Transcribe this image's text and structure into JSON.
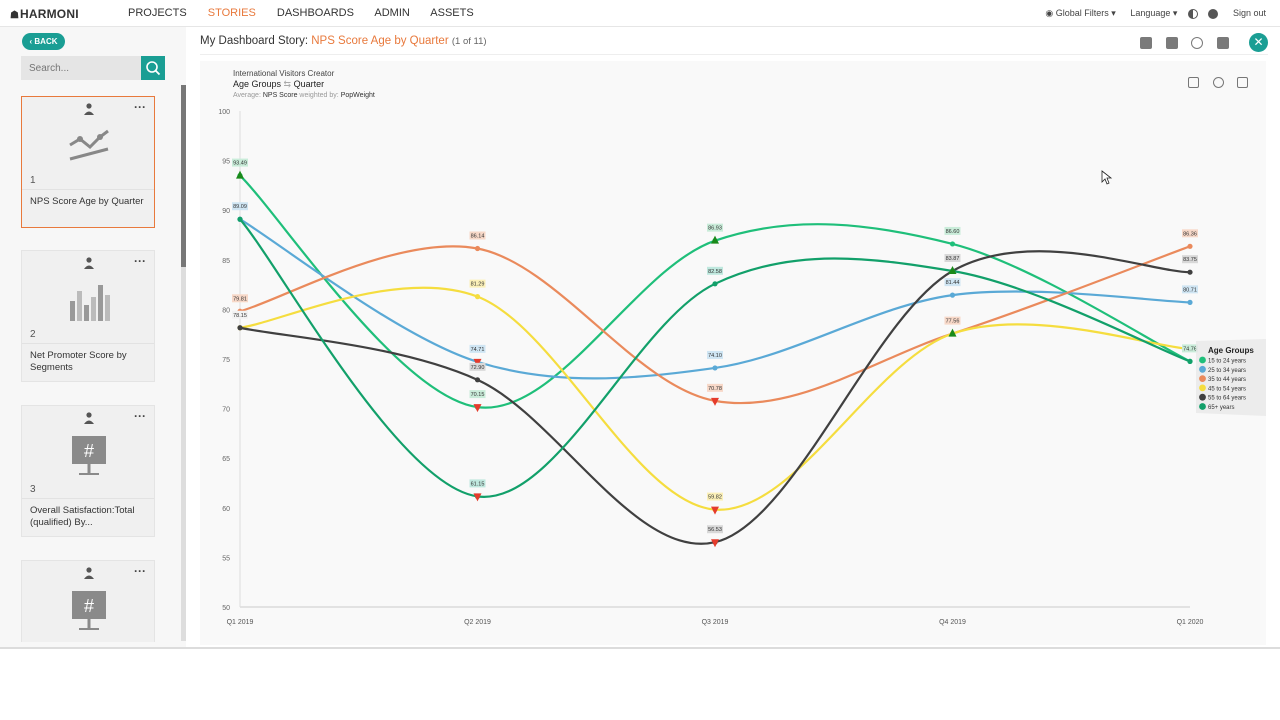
{
  "app": {
    "logo": "HARMONI",
    "nav": [
      "PROJECTS",
      "STORIES",
      "DASHBOARDS",
      "ADMIN",
      "ASSETS"
    ],
    "active_nav": "STORIES",
    "global_filters": "Global Filters",
    "language": "Language",
    "sign_out": "Sign out"
  },
  "sidebar": {
    "back_label": "‹ BACK",
    "search_placeholder": "Search...",
    "cards": [
      {
        "num": "1",
        "caption": "NPS Score Age by Quarter",
        "thumb": "line-chart-icon"
      },
      {
        "num": "2",
        "caption": "Net Promoter Score by Segments",
        "thumb": "bar-chart-icon"
      },
      {
        "num": "3",
        "caption": "Overall Satisfaction:Total (qualified) By...",
        "thumb": "hash-board-icon"
      },
      {
        "num": "4",
        "caption": "",
        "thumb": "hash-board-icon"
      }
    ]
  },
  "story": {
    "prefix": "My Dashboard Story:",
    "name": "NPS Score Age by Quarter",
    "count": "(1 of 11)"
  },
  "chart_header": {
    "source": "International Visitors Creator",
    "row": "Age Groups",
    "col": "Quarter",
    "avg_label": "Average:",
    "measure": "NPS Score",
    "weighted_label": "weighted by:",
    "weight": "PopWeight"
  },
  "chart_data": {
    "type": "line",
    "categories": [
      "Q1 2019",
      "Q2 2019",
      "Q3 2019",
      "Q4 2019",
      "Q1 2020"
    ],
    "ylim": [
      50,
      100
    ],
    "yticks": [
      50,
      55,
      60,
      65,
      70,
      75,
      80,
      85,
      90,
      95,
      100
    ],
    "legend_title": "Age Groups",
    "legend_placement": "right",
    "series": [
      {
        "name": "15 to 24 years",
        "color": "#1fbf7a",
        "values": [
          93.49,
          70.15,
          86.93,
          86.6,
          74.76
        ]
      },
      {
        "name": "25 to 34 years",
        "color": "#5aa9d6",
        "values": [
          89.09,
          74.71,
          74.1,
          81.44,
          80.71
        ]
      },
      {
        "name": "35 to 44 years",
        "color": "#ea8a5c",
        "values": [
          79.81,
          86.14,
          70.78,
          77.56,
          86.36
        ]
      },
      {
        "name": "45 to 54 years",
        "color": "#f5dd3f",
        "values": [
          78.15,
          81.29,
          59.82,
          77.56,
          76.0
        ]
      },
      {
        "name": "55 to 64 years",
        "color": "#404040",
        "values": [
          78.15,
          72.9,
          56.53,
          83.87,
          83.75
        ]
      },
      {
        "name": "65+ years",
        "color": "#12a06a",
        "values": [
          89.09,
          61.15,
          82.58,
          83.87,
          74.76
        ]
      }
    ],
    "point_labels": [
      {
        "text": "93.49",
        "cat": 0,
        "y": 93.49,
        "color": "#c9ecd9"
      },
      {
        "text": "89.09",
        "cat": 0,
        "y": 89.09,
        "color": "#cfe5f3"
      },
      {
        "text": "79.81",
        "cat": 0,
        "y": 79.81,
        "color": "#f7d8c8"
      },
      {
        "text": "78.15",
        "cat": 0,
        "y": 78.15,
        "color": "#f2f2f2"
      },
      {
        "text": "86.14",
        "cat": 1,
        "y": 86.14,
        "color": "#f7d8c8"
      },
      {
        "text": "81.29",
        "cat": 1,
        "y": 81.29,
        "color": "#fbf0b8"
      },
      {
        "text": "74.71",
        "cat": 1,
        "y": 74.71,
        "color": "#cfe5f3"
      },
      {
        "text": "72.90",
        "cat": 1,
        "y": 72.9,
        "color": "#d8d8d8"
      },
      {
        "text": "70.15",
        "cat": 1,
        "y": 70.15,
        "color": "#c9ecd9"
      },
      {
        "text": "61.15",
        "cat": 1,
        "y": 61.15,
        "color": "#bfe8de"
      },
      {
        "text": "86.93",
        "cat": 2,
        "y": 86.93,
        "color": "#c9ecd9"
      },
      {
        "text": "82.58",
        "cat": 2,
        "y": 82.58,
        "color": "#bfe8de"
      },
      {
        "text": "74.10",
        "cat": 2,
        "y": 74.1,
        "color": "#cfe5f3"
      },
      {
        "text": "70.78",
        "cat": 2,
        "y": 70.78,
        "color": "#f7d8c8"
      },
      {
        "text": "59.82",
        "cat": 2,
        "y": 59.82,
        "color": "#fbf0b8"
      },
      {
        "text": "56.53",
        "cat": 2,
        "y": 56.53,
        "color": "#d8d8d8"
      },
      {
        "text": "86.60",
        "cat": 3,
        "y": 86.6,
        "color": "#c9ecd9"
      },
      {
        "text": "83.87",
        "cat": 3,
        "y": 83.87,
        "color": "#d8d8d8"
      },
      {
        "text": "81.44",
        "cat": 3,
        "y": 81.44,
        "color": "#cfe5f3"
      },
      {
        "text": "77.56",
        "cat": 3,
        "y": 77.56,
        "color": "#f7d8c8"
      },
      {
        "text": "86.36",
        "cat": 4,
        "y": 86.36,
        "color": "#f7d8c8"
      },
      {
        "text": "83.75",
        "cat": 4,
        "y": 83.75,
        "color": "#d8d8d8"
      },
      {
        "text": "80.71",
        "cat": 4,
        "y": 80.71,
        "color": "#cfe5f3"
      },
      {
        "text": "74.76",
        "cat": 4,
        "y": 74.76,
        "color": "#c9ecd9"
      }
    ],
    "markers": [
      {
        "cat": 0,
        "y": 93.49,
        "shape": "up",
        "color": "#1a8a1a"
      },
      {
        "cat": 1,
        "y": 74.71,
        "shape": "down",
        "color": "#e53b2c"
      },
      {
        "cat": 1,
        "y": 70.15,
        "shape": "down",
        "color": "#e53b2c"
      },
      {
        "cat": 1,
        "y": 61.15,
        "shape": "down",
        "color": "#e53b2c"
      },
      {
        "cat": 2,
        "y": 86.93,
        "shape": "up",
        "color": "#1a8a1a"
      },
      {
        "cat": 2,
        "y": 70.78,
        "shape": "down",
        "color": "#e53b2c"
      },
      {
        "cat": 2,
        "y": 59.82,
        "shape": "down",
        "color": "#e53b2c"
      },
      {
        "cat": 2,
        "y": 56.53,
        "shape": "down",
        "color": "#e53b2c"
      },
      {
        "cat": 3,
        "y": 83.87,
        "shape": "up",
        "color": "#1a8a1a"
      },
      {
        "cat": 3,
        "y": 77.56,
        "shape": "up",
        "color": "#1a8a1a"
      }
    ]
  }
}
